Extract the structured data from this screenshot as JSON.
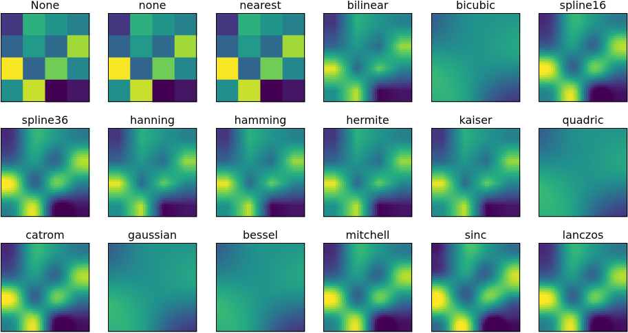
{
  "chart_data": {
    "type": "heatmap",
    "colormap": "viridis",
    "grid": [
      [
        0.16,
        0.64,
        0.52,
        0.44
      ],
      [
        0.33,
        0.54,
        0.35,
        0.86
      ],
      [
        0.99,
        0.33,
        0.78,
        0.46
      ],
      [
        0.5,
        0.92,
        0.0,
        0.06
      ]
    ],
    "panels": [
      {
        "title": "None",
        "method": "nearest"
      },
      {
        "title": "none",
        "method": "nearest"
      },
      {
        "title": "nearest",
        "method": "nearest"
      },
      {
        "title": "bilinear",
        "method": "bilinear"
      },
      {
        "title": "bicubic",
        "method": "smooth"
      },
      {
        "title": "spline16",
        "method": "bicubic"
      },
      {
        "title": "spline36",
        "method": "bicubic"
      },
      {
        "title": "hanning",
        "method": "bilinear"
      },
      {
        "title": "hamming",
        "method": "bilinear"
      },
      {
        "title": "hermite",
        "method": "bilinear"
      },
      {
        "title": "kaiser",
        "method": "bilinear"
      },
      {
        "title": "quadric",
        "method": "smooth"
      },
      {
        "title": "catrom",
        "method": "bicubic"
      },
      {
        "title": "gaussian",
        "method": "smooth"
      },
      {
        "title": "bessel",
        "method": "smooth"
      },
      {
        "title": "mitchell",
        "method": "bicubic"
      },
      {
        "title": "sinc",
        "method": "sharp"
      },
      {
        "title": "lanczos",
        "method": "bicubic"
      }
    ]
  }
}
